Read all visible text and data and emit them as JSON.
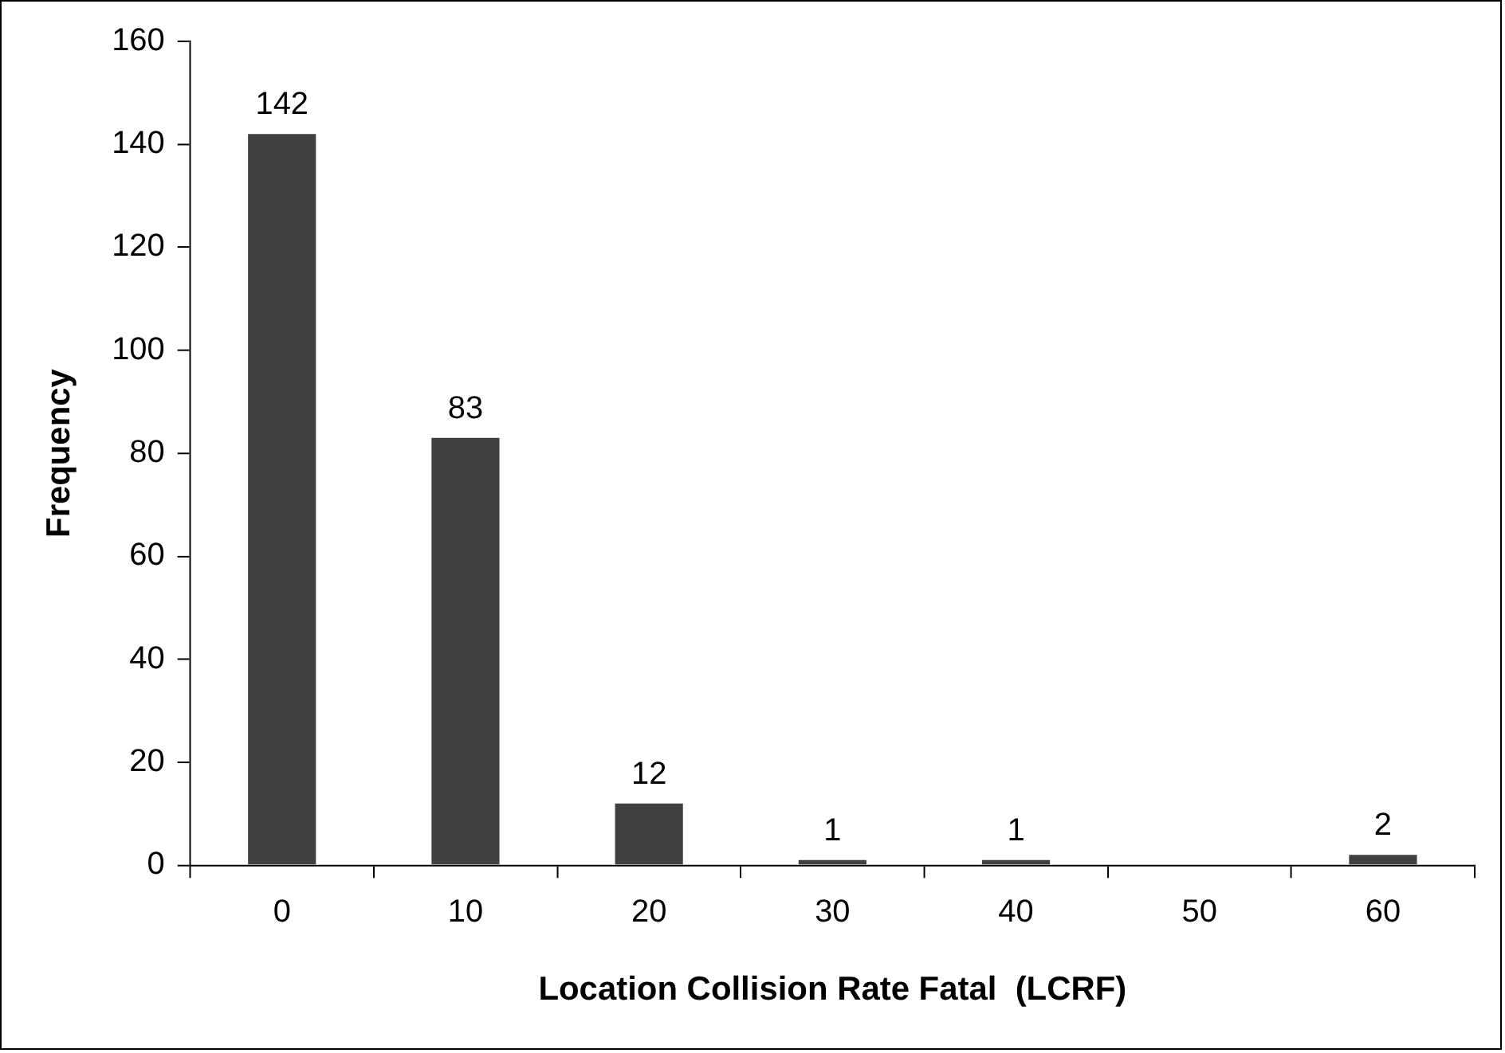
{
  "chart_data": {
    "type": "bar",
    "xlabel": "Location Collision Rate Fatal  (LCRF)",
    "ylabel": "Frequency",
    "categories": [
      "0",
      "10",
      "20",
      "30",
      "40",
      "50",
      "60"
    ],
    "values": [
      142,
      83,
      12,
      1,
      1,
      0,
      2
    ],
    "value_labels": [
      "142",
      "83",
      "12",
      "1",
      "1",
      null,
      "2"
    ],
    "color": "#404040",
    "ylim": [
      0,
      160
    ],
    "yticks": [
      0,
      20,
      40,
      60,
      80,
      100,
      120,
      140,
      160
    ],
    "grid": false,
    "legend": false
  }
}
